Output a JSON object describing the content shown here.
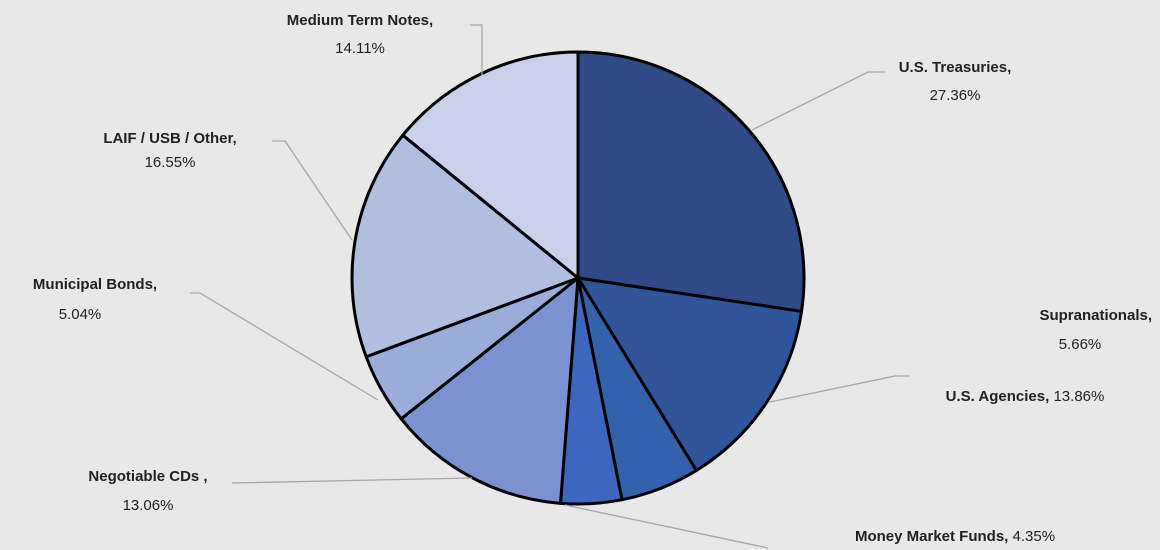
{
  "chart_data": {
    "type": "pie",
    "categories": [
      "U.S. Treasuries,",
      "U.S. Agencies,",
      "Supranationals,",
      "Money Market Funds,",
      "Negotiable CDs ,",
      "Municipal Bonds,",
      "LAIF / USB / Other,",
      "Medium Term Notes,"
    ],
    "values": [
      27.36,
      13.86,
      5.66,
      4.35,
      13.06,
      5.04,
      16.55,
      14.11
    ],
    "value_labels": [
      "27.36%",
      "13.86%",
      "5.66%",
      "4.35%",
      "13.06%",
      "5.04%",
      "16.55%",
      "14.11%"
    ],
    "colors": [
      "#2e4a87",
      "#2f559b",
      "#3461ab",
      "#3d67bf",
      "#7a92cf",
      "#9aacda",
      "#b2bee0",
      "#cacfea"
    ]
  }
}
